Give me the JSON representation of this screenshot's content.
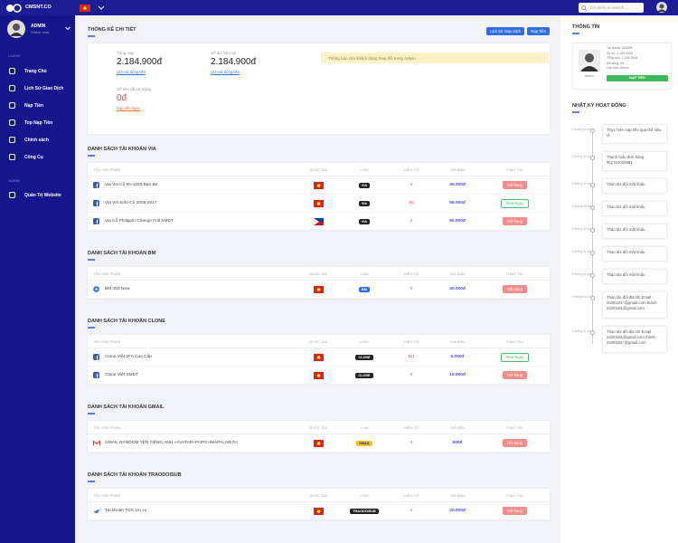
{
  "topbar": {
    "brand": "CMSNT.CO",
    "search": "Tìm kiếm to search..."
  },
  "sidebar": {
    "user": "ADMIN",
    "status": "Online now",
    "client_label": "CLIENT",
    "client_menu": [
      "Trang Chủ",
      "Lịch Sử Giao Dịch",
      "Nạp Tiền",
      "Top Nạp Tiền",
      "Chính sách",
      "Công Cụ"
    ],
    "admin_label": "ADMIN",
    "admin_menu": [
      "Quản Trị Website"
    ]
  },
  "stats": {
    "title": "THỐNG KÊ CHI TIẾT",
    "buttons": [
      "Lịch Sử Giao Dịch",
      "Nạp Tiền"
    ],
    "notice": "Thông báo cho khách hàng thay đổi trong Admin",
    "cards": [
      {
        "label": "Tổng nạp",
        "value": "2.184.900đ",
        "link": "Lịch sử dòng tiền"
      },
      {
        "label": "Số dư hiện tại",
        "value": "2.184.900đ",
        "link": "Lịch sử dòng tiền"
      },
      {
        "label": "Số tiền đã sử dụng",
        "value": "0đ",
        "link": "Nạp tiền ngay"
      }
    ]
  },
  "table_headers": [
    "TÊN SẢN PHẨM",
    "QUỐC GIA",
    "LOẠI",
    "HIỆN CÓ",
    "GIÁ BÁN",
    "THAO TÁC"
  ],
  "sections": [
    {
      "title": "DANH SÁCH TÀI KHOẢN VIA",
      "icon": "facebook",
      "rows": [
        {
          "name": "Via VN Cổ 50-1000 Bạn Bè",
          "flag": "vn",
          "type": "VIA",
          "badge_color": "#222",
          "stock": 0,
          "price": "35.000đ",
          "action": "Hết hàng"
        },
        {
          "name": "Via VN Siêu Cổ 2008-2017",
          "flag": "vn",
          "type": "VIA",
          "badge_color": "#222",
          "stock": 55,
          "price": "65.000đ",
          "action": "Mua Ngay"
        },
        {
          "name": "Via Cổ Philippin Change Full XMDT",
          "flag": "ph",
          "type": "VIA",
          "badge_color": "#222",
          "stock": 0,
          "price": "80.000đ",
          "action": "Hết hàng"
        }
      ]
    },
    {
      "title": "DANH SÁCH TÀI KHOẢN BM",
      "icon": "bm",
      "rows": [
        {
          "name": "BM 350 New",
          "flag": "vn",
          "type": "BM",
          "badge_color": "#2f6de1",
          "stock": 0,
          "price": "40.000đ",
          "action": "Hết hàng"
        }
      ]
    },
    {
      "title": "DANH SÁCH TÀI KHOẢN CLONE",
      "icon": "facebook",
      "rows": [
        {
          "name": "Clone Việt 2FA Cao Cấp",
          "flag": "vn",
          "type": "CLONE",
          "badge_color": "#222",
          "stock": 111,
          "price": "5.000đ",
          "action": "Mua Ngay"
        },
        {
          "name": "Clone Việt XMDT",
          "flag": "vn",
          "type": "CLONE",
          "badge_color": "#222",
          "stock": 0,
          "price": "10.000đ",
          "action": "Hết hàng"
        }
      ]
    },
    {
      "title": "DANH SÁCH TÀI KHOẢN GMAIL",
      "icon": "gmail",
      "rows": [
        {
          "name": "GMAIL RANDOM TÊN TIẾNG ANH +AVATAR+POP3+IMAP+LIVE7H",
          "flag": "vn",
          "type": "GMAIL",
          "badge_color": "#f2c230",
          "stock": 0,
          "price": "500đ",
          "action": "Hết hàng"
        }
      ]
    },
    {
      "title": "DANH SÁCH TÀI KHOẢN TRAODOISUB",
      "icon": "tds",
      "rows": [
        {
          "name": "Tài khoản TDS 1m xu",
          "flag": "vn",
          "type": "TRAODOISUB",
          "badge_color": "#222",
          "stock": 0,
          "price": "20.000đ",
          "action": "Hết hàng"
        }
      ]
    }
  ],
  "info": {
    "title": "THÔNG TIN",
    "name": "Admin",
    "fields": [
      "Tài khoản: ADMIN",
      "Số dư: 2.184.900đ",
      "Tổng nạp: 2.184.900đ",
      "Đã dùng: 0đ",
      "Cấp bậc: Admin"
    ],
    "button": "NẠP TIỀN"
  },
  "activity": {
    "title": "NHẬT KÝ HOẠT ĐỘNG",
    "items": [
      {
        "time": "2 tháng trước",
        "text": "Thực hiện nạp tiền qua thẻ siêu rẻ"
      },
      {
        "time": "2 tháng trước",
        "text": "Thanh toán đơn hàng #61762025981"
      },
      {
        "time": "3 tháng trước",
        "text": "Thao tác đổi mật khẩu"
      },
      {
        "time": "3 tháng trước",
        "text": "Thao tác đổi mật khẩu"
      },
      {
        "time": "3 tháng trước",
        "text": "Thao tác đổi mật khẩu"
      },
      {
        "time": "3 tháng trước",
        "text": "Thao tác đổi mật khẩu"
      },
      {
        "time": "3 tháng trước",
        "text": "Thao tác đổi mật khẩu"
      },
      {
        "time": "4 tháng trước",
        "text": "Thao tác đổi địa chỉ Email nt200181*@gmail.com thành nt200181@gmail.com"
      },
      {
        "time": "4 tháng trước",
        "text": "Thao tác đổi địa chỉ Email nt200181@gmail.com thành nt200181*@gmail.com"
      }
    ]
  }
}
